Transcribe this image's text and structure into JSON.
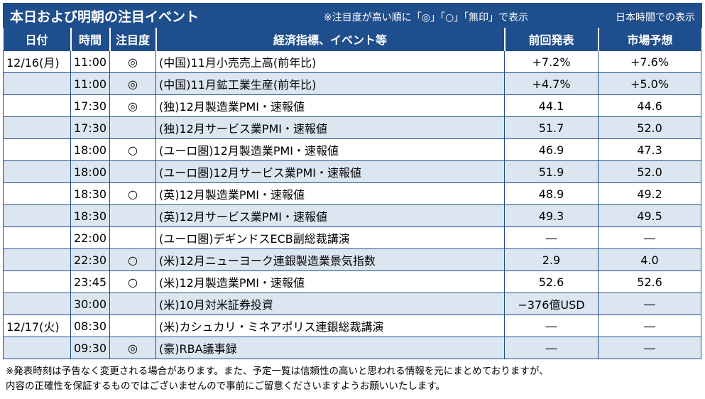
{
  "header": {
    "title": "本日および明朝の注目イベント",
    "note": "※注目度が高い順に「◎」「○」「無印」で表示",
    "timezone": "日本時間での表示"
  },
  "columns": {
    "date": "日付",
    "time": "時間",
    "attention": "注目度",
    "event": "経済指標、イベント等",
    "previous": "前回発表",
    "forecast": "市場予想"
  },
  "rows": [
    {
      "date": "12/16(月)",
      "time": "11:00",
      "mark": "◎",
      "event": "(中国)11月小売売上高(前年比)",
      "prev": "+7.2%",
      "fcst": "+7.6%"
    },
    {
      "date": "",
      "time": "11:00",
      "mark": "◎",
      "event": "(中国)11月鉱工業生産(前年比)",
      "prev": "+4.7%",
      "fcst": "+5.0%"
    },
    {
      "date": "",
      "time": "17:30",
      "mark": "◎",
      "event": "(独)12月製造業PMI・速報値",
      "prev": "44.1",
      "fcst": "44.6"
    },
    {
      "date": "",
      "time": "17:30",
      "mark": "",
      "event": "(独)12月サービス業PMI・速報値",
      "prev": "51.7",
      "fcst": "52.0"
    },
    {
      "date": "",
      "time": "18:00",
      "mark": "○",
      "event": "(ユーロ圏)12月製造業PMI・速報値",
      "prev": "46.9",
      "fcst": "47.3"
    },
    {
      "date": "",
      "time": "18:00",
      "mark": "",
      "event": "(ユーロ圏)12月サービス業PMI・速報値",
      "prev": "51.9",
      "fcst": "52.0"
    },
    {
      "date": "",
      "time": "18:30",
      "mark": "○",
      "event": "(英)12月製造業PMI・速報値",
      "prev": "48.9",
      "fcst": "49.2"
    },
    {
      "date": "",
      "time": "18:30",
      "mark": "",
      "event": "(英)12月サービス業PMI・速報値",
      "prev": "49.3",
      "fcst": "49.5"
    },
    {
      "date": "",
      "time": "22:00",
      "mark": "",
      "event": "(ユーロ圏)デギンドスECB副総裁講演",
      "prev": "―",
      "fcst": "―"
    },
    {
      "date": "",
      "time": "22:30",
      "mark": "○",
      "event": "(米)12月ニューヨーク連銀製造業景気指数",
      "prev": "2.9",
      "fcst": "4.0"
    },
    {
      "date": "",
      "time": "23:45",
      "mark": "○",
      "event": "(米)12月製造業PMI・速報値",
      "prev": "52.6",
      "fcst": "52.6"
    },
    {
      "date": "",
      "time": "30:00",
      "mark": "",
      "event": "(米)10月対米証券投資",
      "prev": "−376億USD",
      "fcst": "―"
    },
    {
      "date": "12/17(火)",
      "time": "08:30",
      "mark": "",
      "event": "(米)カシュカリ・ミネアポリス連銀総裁講演",
      "prev": "―",
      "fcst": "―"
    },
    {
      "date": "",
      "time": "09:30",
      "mark": "◎",
      "event": "(豪)RBA議事録",
      "prev": "―",
      "fcst": "―"
    }
  ],
  "footer": {
    "line1": "※発表時刻は予告なく変更される場合があります。また、予定一覧は信頼性の高いと思われる情報を元にまとめておりますが、",
    "line2": "内容の正確性を保証するものではございませんので事前にご留意くださいますようお願いいたします。"
  }
}
